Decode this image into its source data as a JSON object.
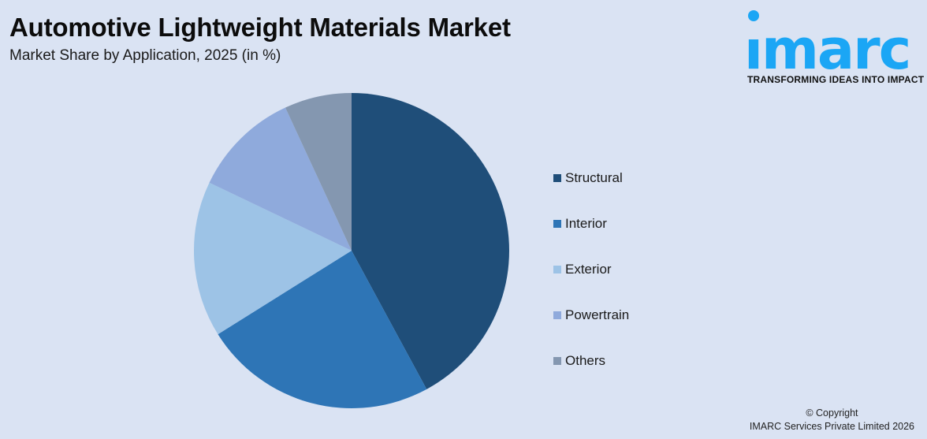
{
  "header": {
    "title": "Automotive Lightweight Materials Market",
    "subtitle": "Market Share by Application, 2025 (in %)"
  },
  "logo": {
    "brand": "imarc",
    "tagline": "TRANSFORMING IDEAS INTO IMPACT",
    "color": "#1ba6f5"
  },
  "footer": {
    "copyright_line1": "© Copyright",
    "copyright_line2": "IMARC Services Private Limited 2026"
  },
  "chart_data": {
    "type": "pie",
    "title": "Automotive Lightweight Materials Market",
    "subtitle": "Market Share by Application, 2025 (in %)",
    "categories": [
      "Structural",
      "Interior",
      "Exterior",
      "Powertrain",
      "Others"
    ],
    "values": [
      42.1,
      24.0,
      16.0,
      11.0,
      6.9
    ],
    "colors": [
      "#1f4e79",
      "#2e75b6",
      "#9dc3e6",
      "#8faadc",
      "#8497b0"
    ],
    "start_angle_deg": 0,
    "direction": "clockwise",
    "legend_position": "right",
    "data_labels": false
  },
  "legend": {
    "items": [
      {
        "label": "Structural",
        "color": "#1f4e79"
      },
      {
        "label": "Interior",
        "color": "#2e75b6"
      },
      {
        "label": "Exterior",
        "color": "#9dc3e6"
      },
      {
        "label": "Powertrain",
        "color": "#8faadc"
      },
      {
        "label": "Others",
        "color": "#8497b0"
      }
    ]
  }
}
